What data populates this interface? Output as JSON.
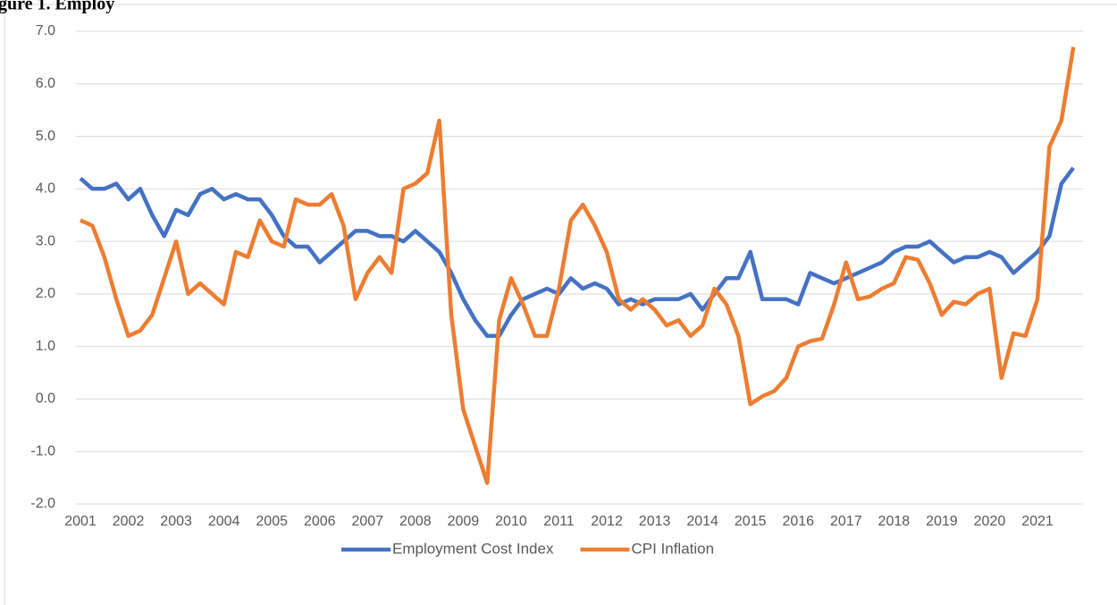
{
  "chart_data": {
    "type": "line",
    "title": "gure 1. Employ",
    "categories": [
      "2001",
      null,
      null,
      null,
      "2002",
      null,
      null,
      null,
      "2003",
      null,
      null,
      null,
      "2004",
      null,
      null,
      null,
      "2005",
      null,
      null,
      null,
      "2006",
      null,
      null,
      null,
      "2007",
      null,
      null,
      null,
      "2008",
      null,
      null,
      null,
      "2009",
      null,
      null,
      null,
      "2010",
      null,
      null,
      null,
      "2011",
      null,
      null,
      null,
      "2012",
      null,
      null,
      null,
      "2013",
      null,
      null,
      null,
      "2014",
      null,
      null,
      null,
      "2015",
      null,
      null,
      null,
      "2016",
      null,
      null,
      null,
      "2017",
      null,
      null,
      null,
      "2018",
      null,
      null,
      null,
      "2019",
      null,
      null,
      null,
      "2020",
      null,
      null,
      null,
      "2021",
      null,
      null,
      null
    ],
    "series": [
      {
        "name": "Employment Cost Index",
        "color": "#4472c4",
        "values": [
          4.2,
          4.0,
          4.0,
          4.1,
          3.8,
          4.0,
          3.5,
          3.1,
          3.6,
          3.5,
          3.9,
          4.0,
          3.8,
          3.9,
          3.8,
          3.8,
          3.5,
          3.1,
          2.9,
          2.9,
          2.6,
          2.8,
          3.0,
          3.2,
          3.2,
          3.1,
          3.1,
          3.0,
          3.2,
          3.0,
          2.8,
          2.4,
          1.9,
          1.5,
          1.2,
          1.2,
          1.6,
          1.9,
          2.0,
          2.1,
          2.0,
          2.3,
          2.1,
          2.2,
          2.1,
          1.8,
          1.9,
          1.8,
          1.9,
          1.9,
          1.9,
          2.0,
          1.7,
          2.0,
          2.3,
          2.3,
          2.8,
          1.9,
          1.9,
          1.9,
          1.8,
          2.4,
          2.3,
          2.2,
          2.3,
          2.4,
          2.5,
          2.6,
          2.8,
          2.9,
          2.9,
          3.0,
          2.8,
          2.6,
          2.7,
          2.7,
          2.8,
          2.7,
          2.4,
          2.6,
          2.8,
          3.1,
          4.1,
          4.4
        ]
      },
      {
        "name": "CPI Inflation",
        "color": "#ed7d31",
        "values": [
          3.4,
          3.3,
          2.7,
          1.9,
          1.2,
          1.3,
          1.6,
          2.3,
          3.0,
          2.0,
          2.2,
          2.0,
          1.8,
          2.8,
          2.7,
          3.4,
          3.0,
          2.9,
          3.8,
          3.7,
          3.7,
          3.9,
          3.3,
          1.9,
          2.4,
          2.7,
          2.4,
          4.0,
          4.1,
          4.3,
          5.3,
          1.6,
          -0.2,
          -0.9,
          -1.6,
          1.5,
          2.3,
          1.8,
          1.2,
          1.2,
          2.1,
          3.4,
          3.7,
          3.3,
          2.8,
          1.9,
          1.7,
          1.9,
          1.7,
          1.4,
          1.5,
          1.2,
          1.4,
          2.1,
          1.8,
          1.2,
          -0.1,
          0.05,
          0.15,
          0.4,
          1.0,
          1.1,
          1.15,
          1.8,
          2.6,
          1.9,
          1.95,
          2.1,
          2.2,
          2.7,
          2.65,
          2.2,
          1.6,
          1.85,
          1.8,
          2.0,
          2.1,
          0.4,
          1.25,
          1.2,
          1.9,
          4.8,
          5.3,
          6.7
        ]
      }
    ],
    "ylim": [
      -2,
      7
    ],
    "yticks": [
      {
        "value": -2,
        "label": "-2.0"
      },
      {
        "value": -1,
        "label": "-1.0"
      },
      {
        "value": 0,
        "label": "0.0"
      },
      {
        "value": 1,
        "label": "1.0"
      },
      {
        "value": 2,
        "label": "2.0"
      },
      {
        "value": 3,
        "label": "3.0"
      },
      {
        "value": 4,
        "label": "4.0"
      },
      {
        "value": 5,
        "label": "5.0"
      },
      {
        "value": 6,
        "label": "6.0"
      },
      {
        "value": 7,
        "label": "7.0"
      }
    ],
    "grid": true,
    "legend": "bottom"
  }
}
